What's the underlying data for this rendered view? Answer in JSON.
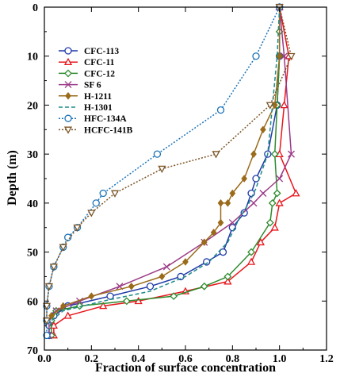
{
  "chart_data": {
    "type": "line",
    "xlabel": "Fraction of surface concentration",
    "ylabel": "Depth (m)",
    "xlim": [
      0.0,
      1.2
    ],
    "ylim": [
      0,
      70
    ],
    "y_inverted": true,
    "xticks": [
      "0.0",
      "0.2",
      "0.4",
      "0.6",
      "0.8",
      "1.0",
      "1.2"
    ],
    "yticks": [
      "0",
      "10",
      "20",
      "30",
      "40",
      "50",
      "60",
      "70"
    ],
    "grid": false,
    "legend_position": "top-left",
    "series": [
      {
        "name": "CFC-113",
        "color": "#1f3aa8",
        "dash": "",
        "marker": "circle",
        "points": [
          [
            1.0,
            0
          ],
          [
            1.0,
            10
          ],
          [
            0.99,
            20
          ],
          [
            0.95,
            30
          ],
          [
            0.9,
            35
          ],
          [
            0.88,
            38
          ],
          [
            0.85,
            42
          ],
          [
            0.8,
            45
          ],
          [
            0.76,
            50
          ],
          [
            0.69,
            52
          ],
          [
            0.58,
            55
          ],
          [
            0.45,
            57
          ],
          [
            0.28,
            59
          ],
          [
            0.1,
            61
          ],
          [
            0.04,
            63
          ],
          [
            0.02,
            65
          ],
          [
            0.02,
            67
          ]
        ]
      },
      {
        "name": "CFC-11",
        "color": "#e8151b",
        "dash": "",
        "marker": "triangle-up",
        "points": [
          [
            1.0,
            0
          ],
          [
            1.04,
            10
          ],
          [
            1.02,
            20
          ],
          [
            1.0,
            30
          ],
          [
            1.07,
            38
          ],
          [
            1.0,
            40
          ],
          [
            0.98,
            45
          ],
          [
            0.92,
            48
          ],
          [
            0.88,
            52
          ],
          [
            0.78,
            56
          ],
          [
            0.6,
            58
          ],
          [
            0.4,
            60
          ],
          [
            0.25,
            61
          ],
          [
            0.1,
            63
          ],
          [
            0.04,
            65
          ],
          [
            0.04,
            67
          ]
        ]
      },
      {
        "name": "CFC-12",
        "color": "#2e8b2e",
        "dash": "",
        "marker": "diamond",
        "points": [
          [
            1.0,
            0
          ],
          [
            1.0,
            5
          ],
          [
            1.0,
            10
          ],
          [
            0.99,
            20
          ],
          [
            0.98,
            30
          ],
          [
            0.99,
            38
          ],
          [
            0.97,
            40
          ],
          [
            0.96,
            44
          ],
          [
            0.88,
            50
          ],
          [
            0.78,
            55
          ],
          [
            0.68,
            57
          ],
          [
            0.55,
            59
          ],
          [
            0.35,
            60
          ],
          [
            0.15,
            61
          ],
          [
            0.05,
            62
          ],
          [
            0.03,
            64
          ],
          [
            0.03,
            67
          ]
        ]
      },
      {
        "name": "SF 6",
        "color": "#9b3a87",
        "dash": "",
        "marker": "x",
        "points": [
          [
            1.0,
            0
          ],
          [
            1.02,
            10
          ],
          [
            1.05,
            30
          ],
          [
            1.0,
            35
          ],
          [
            0.93,
            38
          ],
          [
            0.89,
            40
          ],
          [
            0.8,
            44
          ],
          [
            0.68,
            48
          ],
          [
            0.52,
            53
          ],
          [
            0.32,
            57
          ],
          [
            0.15,
            60
          ],
          [
            0.05,
            62
          ],
          [
            0.02,
            64
          ],
          [
            0.02,
            67
          ]
        ]
      },
      {
        "name": "H-1211",
        "color": "#9a6b1a",
        "dash": "",
        "marker": "diamond-filled",
        "points": [
          [
            1.0,
            0
          ],
          [
            1.0,
            10
          ],
          [
            0.98,
            20
          ],
          [
            0.93,
            25
          ],
          [
            0.89,
            30
          ],
          [
            0.85,
            35
          ],
          [
            0.8,
            38
          ],
          [
            0.78,
            40
          ],
          [
            0.75,
            40
          ],
          [
            0.75,
            44
          ],
          [
            0.72,
            46
          ],
          [
            0.68,
            48
          ],
          [
            0.6,
            52
          ],
          [
            0.5,
            55
          ],
          [
            0.37,
            57
          ],
          [
            0.2,
            59
          ],
          [
            0.08,
            61
          ],
          [
            0.03,
            63
          ]
        ]
      },
      {
        "name": "H-1301",
        "color": "#1e8a8a",
        "dash": "5,3",
        "marker": "none",
        "points": [
          [
            1.0,
            0
          ],
          [
            0.99,
            10
          ],
          [
            0.97,
            20
          ],
          [
            0.95,
            30
          ],
          [
            0.9,
            37
          ],
          [
            0.87,
            40
          ],
          [
            0.83,
            43
          ],
          [
            0.78,
            48
          ],
          [
            0.7,
            52
          ],
          [
            0.6,
            55
          ],
          [
            0.45,
            58
          ],
          [
            0.25,
            60
          ],
          [
            0.08,
            62
          ],
          [
            0.03,
            64
          ],
          [
            0.02,
            66
          ]
        ]
      },
      {
        "name": "HFC-134A",
        "color": "#1b73b8",
        "dash": "2,2",
        "marker": "circle",
        "points": [
          [
            1.0,
            0
          ],
          [
            0.9,
            10
          ],
          [
            0.75,
            21
          ],
          [
            0.48,
            30
          ],
          [
            0.25,
            38
          ],
          [
            0.22,
            40
          ],
          [
            0.14,
            45
          ],
          [
            0.1,
            47
          ],
          [
            0.08,
            49
          ],
          [
            0.04,
            53
          ],
          [
            0.02,
            57
          ],
          [
            0.01,
            61
          ],
          [
            0.01,
            64
          ],
          [
            0.01,
            67
          ]
        ]
      },
      {
        "name": "HCFC-141B",
        "color": "#7a5424",
        "dash": "2,2",
        "marker": "triangle-down",
        "points": [
          [
            1.0,
            0
          ],
          [
            1.05,
            10
          ],
          [
            0.96,
            20
          ],
          [
            0.73,
            30
          ],
          [
            0.5,
            33
          ],
          [
            0.3,
            38
          ],
          [
            0.2,
            42
          ],
          [
            0.14,
            45
          ],
          [
            0.08,
            49
          ],
          [
            0.04,
            53
          ],
          [
            0.02,
            57
          ],
          [
            0.01,
            61
          ],
          [
            0.01,
            64
          ]
        ]
      }
    ]
  }
}
